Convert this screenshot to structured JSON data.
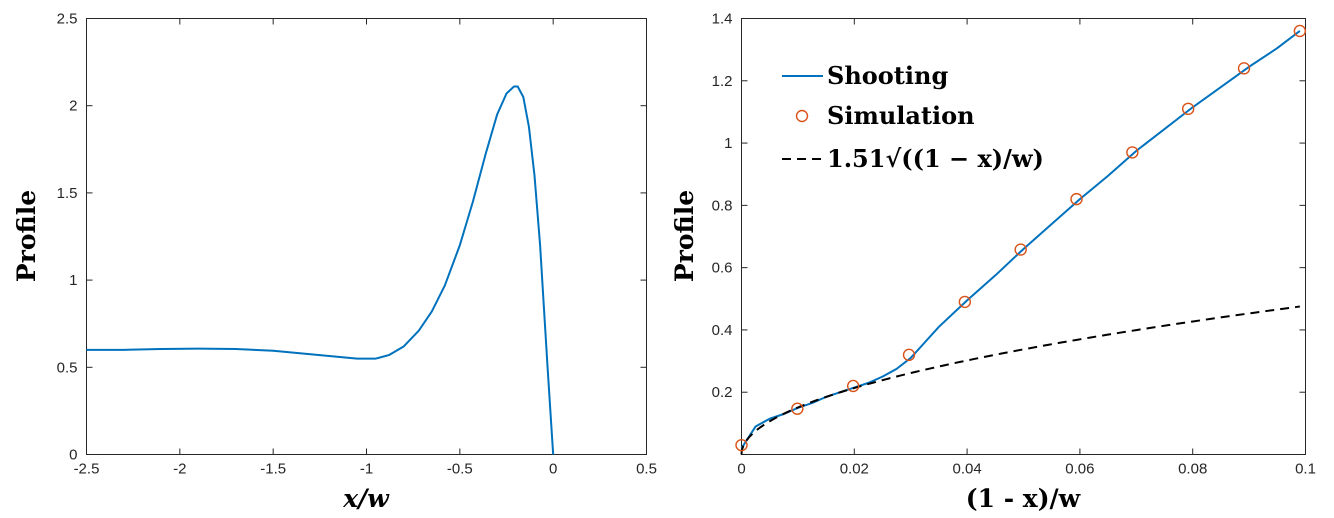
{
  "chart_data": [
    {
      "type": "line",
      "xlabel": "x/w",
      "ylabel": "Profile",
      "xlim": [
        -2.5,
        0.5
      ],
      "ylim": [
        0,
        2.5
      ],
      "xticks": [
        "-2.5",
        "-2",
        "-1.5",
        "-1",
        "-0.5",
        "0",
        "0.5"
      ],
      "yticks": [
        "0",
        "0.5",
        "1",
        "1.5",
        "2",
        "2.5"
      ],
      "grid": false,
      "series": [
        {
          "color": "#0072BD",
          "x": [
            -2.5,
            -2.3,
            -2.1,
            -1.9,
            -1.7,
            -1.5,
            -1.3,
            -1.15,
            -1.05,
            -0.95,
            -0.88,
            -0.8,
            -0.72,
            -0.65,
            -0.58,
            -0.5,
            -0.43,
            -0.36,
            -0.3,
            -0.25,
            -0.21,
            -0.19,
            -0.16,
            -0.13,
            -0.1,
            -0.07,
            -0.05,
            -0.03,
            -0.015,
            0
          ],
          "y": [
            0.6,
            0.6,
            0.605,
            0.607,
            0.605,
            0.595,
            0.575,
            0.56,
            0.55,
            0.55,
            0.57,
            0.62,
            0.71,
            0.82,
            0.97,
            1.2,
            1.45,
            1.73,
            1.95,
            2.07,
            2.11,
            2.11,
            2.05,
            1.88,
            1.6,
            1.2,
            0.85,
            0.5,
            0.25,
            0
          ]
        }
      ]
    },
    {
      "type": "line",
      "xlabel": "(1 - x)/w",
      "ylabel": "Profile",
      "xlim": [
        0,
        0.1
      ],
      "ylim": [
        0,
        1.4
      ],
      "xticks": [
        "0",
        "0.02",
        "0.04",
        "0.06",
        "0.08",
        "0.1"
      ],
      "yticks": [
        "0.2",
        "0.4",
        "0.6",
        "0.8",
        "1",
        "1.2",
        "1.4"
      ],
      "grid": false,
      "legend_position": "top-left",
      "series": [
        {
          "name": "Shooting",
          "style": "solid",
          "color": "#0072BD",
          "x": [
            0,
            0.0025,
            0.005,
            0.0075,
            0.01,
            0.0125,
            0.015,
            0.0175,
            0.02,
            0.0225,
            0.025,
            0.0275,
            0.03,
            0.0325,
            0.035,
            0.04,
            0.045,
            0.05,
            0.055,
            0.06,
            0.065,
            0.07,
            0.075,
            0.08,
            0.085,
            0.09,
            0.095,
            0.099
          ],
          "y": [
            0.02,
            0.09,
            0.115,
            0.13,
            0.15,
            0.165,
            0.185,
            0.2,
            0.215,
            0.23,
            0.25,
            0.275,
            0.31,
            0.36,
            0.41,
            0.495,
            0.575,
            0.66,
            0.74,
            0.82,
            0.895,
            0.975,
            1.045,
            1.115,
            1.18,
            1.245,
            1.305,
            1.36
          ]
        },
        {
          "name": "Simulation",
          "style": "markers",
          "color": "#D95319",
          "x": [
            0,
            0.0099,
            0.0198,
            0.0297,
            0.0396,
            0.0495,
            0.0594,
            0.0693,
            0.0792,
            0.0891,
            0.099
          ],
          "y": [
            0.03,
            0.147,
            0.22,
            0.32,
            0.49,
            0.658,
            0.82,
            0.97,
            1.11,
            1.24,
            1.36
          ]
        },
        {
          "name": "1.51√((1 − x)/w)",
          "style": "dashed",
          "color": "#000000",
          "function": "1.51*sqrt(x)",
          "x_range": [
            0,
            0.099
          ]
        }
      ]
    }
  ]
}
